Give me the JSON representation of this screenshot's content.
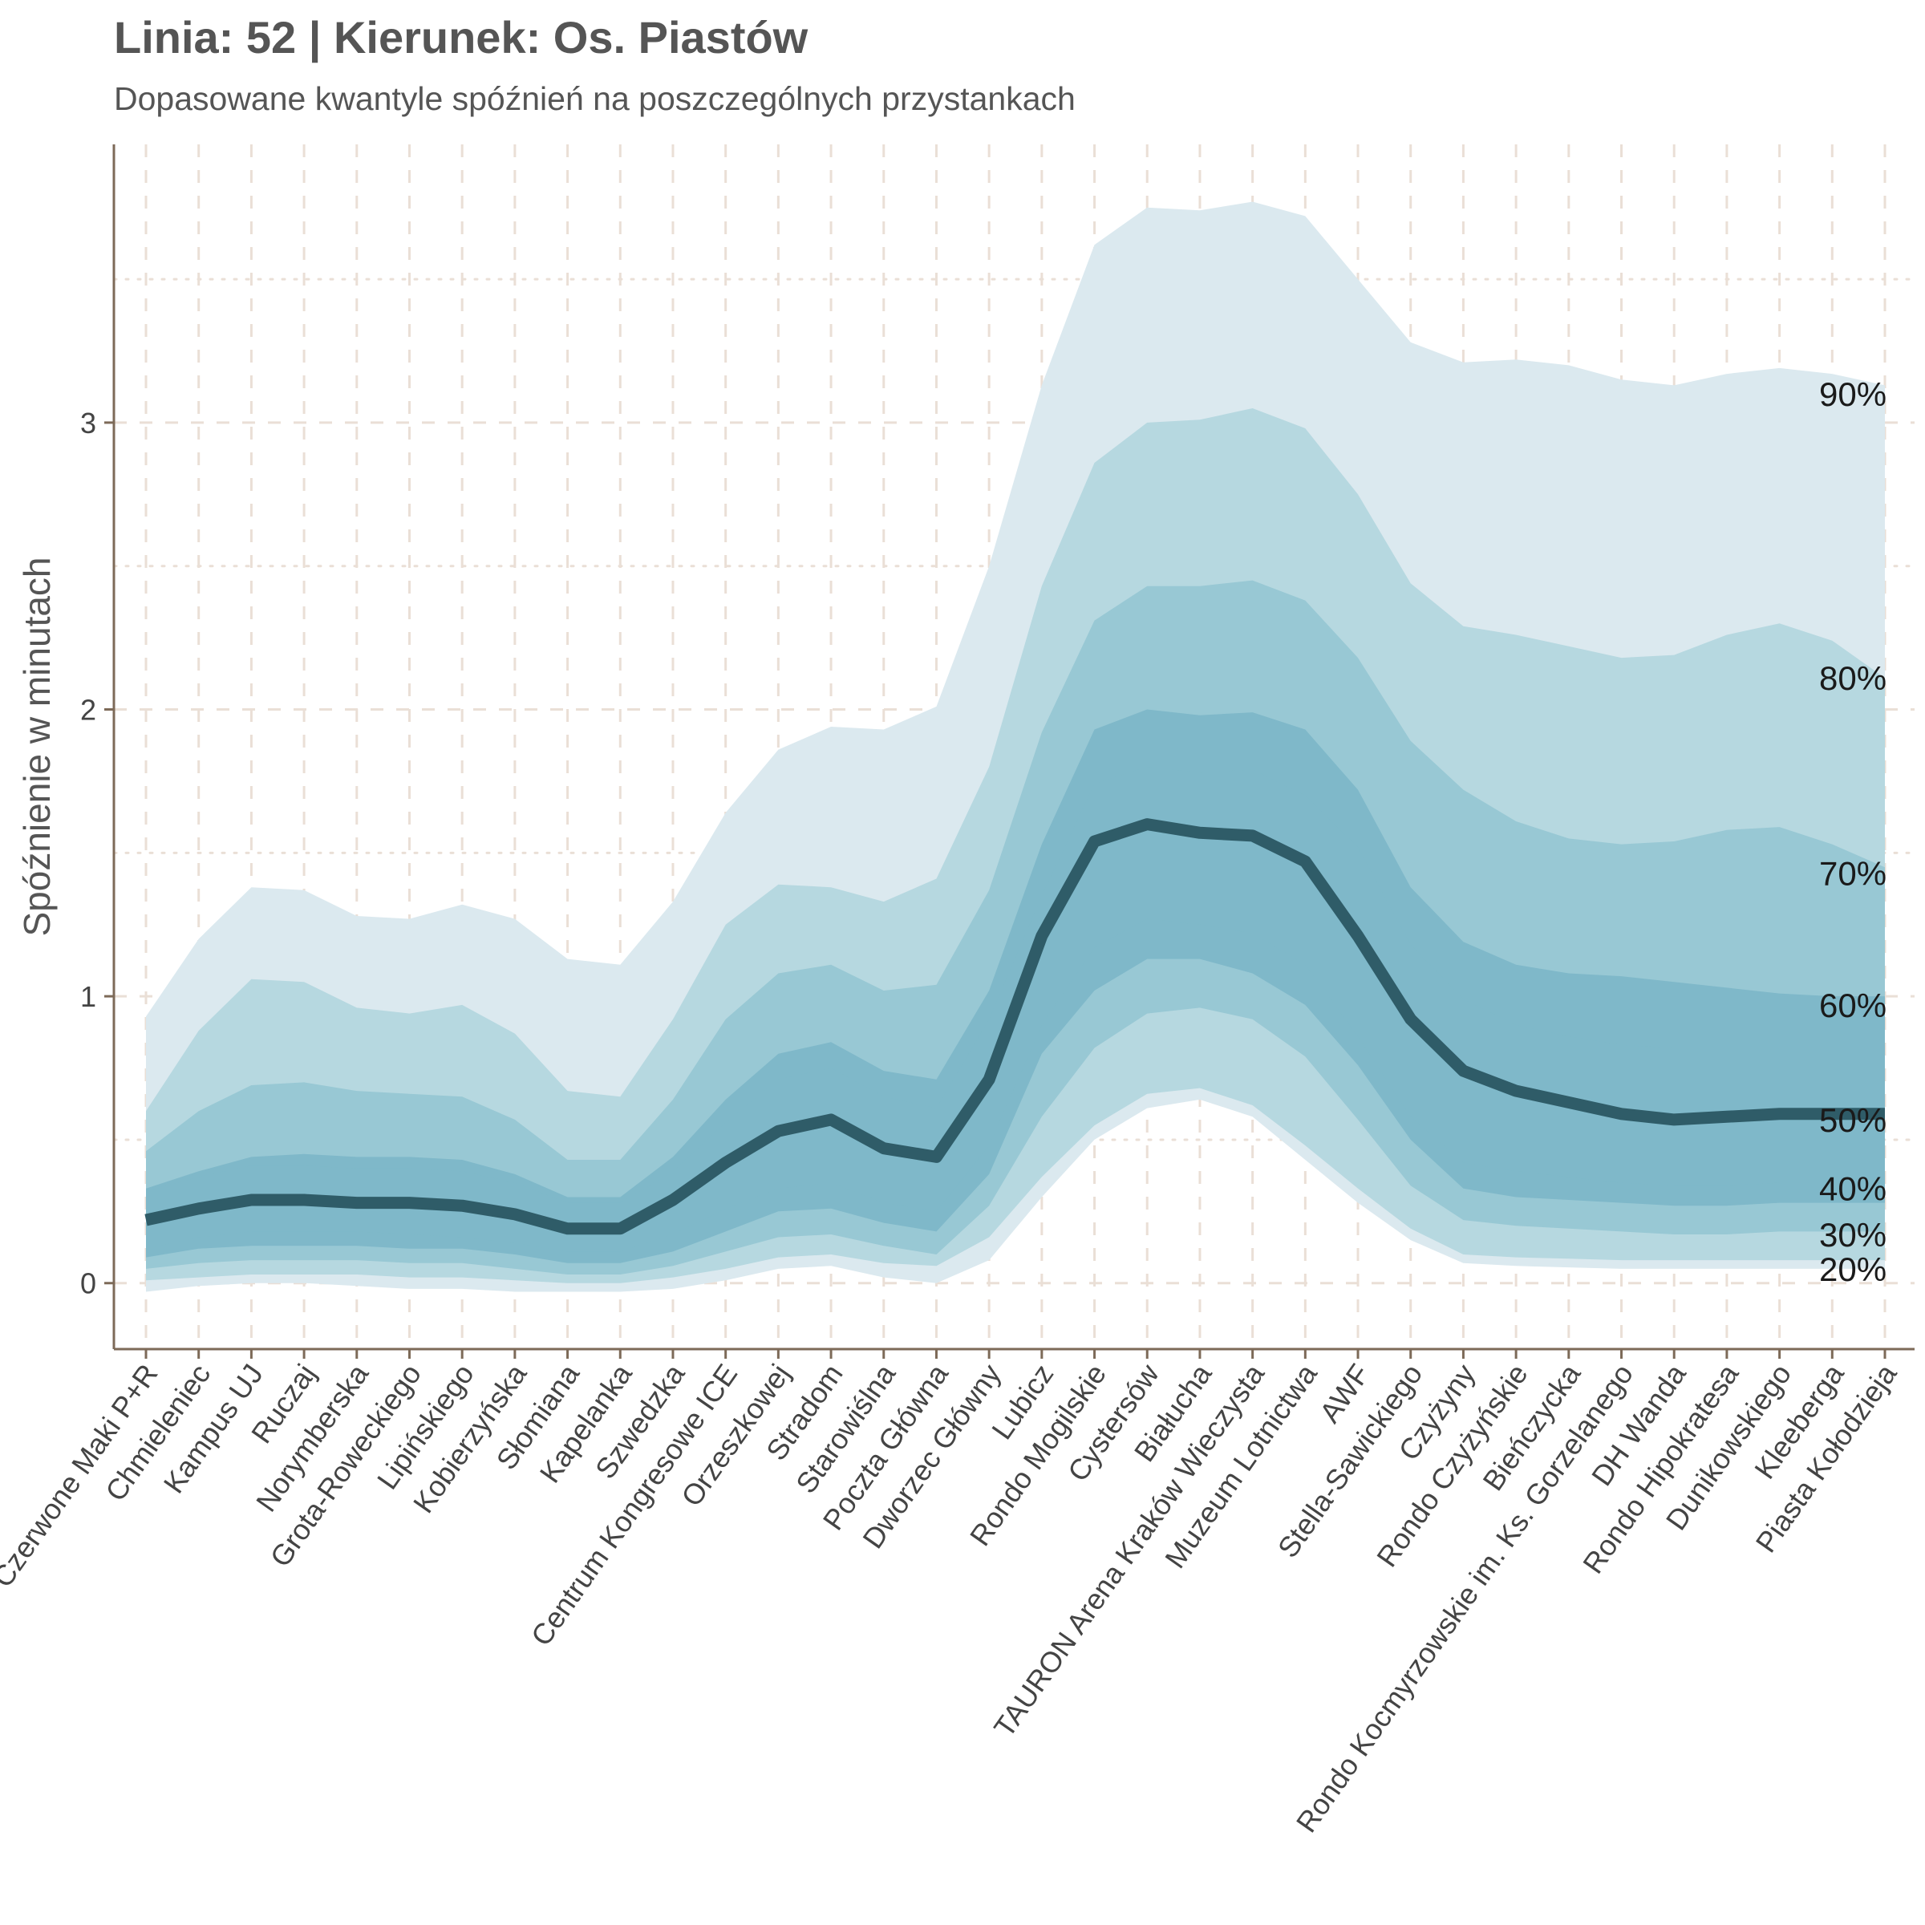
{
  "title": "Linia: 52 | Kierunek: Os. Piastów",
  "subtitle": "Dopasowane kwantyle spóźnień na poszczególnych przystankach",
  "chart_data": {
    "type": "area",
    "title": "Linia: 52 | Kierunek: Os. Piastów",
    "subtitle": "Dopasowane kwantyle spóźnień na poszczególnych przystankach",
    "xlabel": "",
    "ylabel": "Spóźnienie w minutach",
    "ylim": [
      -0.23,
      3.97
    ],
    "yticks": [
      0,
      1,
      2,
      3
    ],
    "grid": true,
    "categories": [
      "Czerwone Maki P+R",
      "Chmieleniec",
      "Kampus UJ",
      "Ruczaj",
      "Norymberska",
      "Grota-Roweckiego",
      "Lipińskiego",
      "Kobierzyńska",
      "Słomiana",
      "Kapelanka",
      "Szwedzka",
      "Centrum Kongresowe ICE",
      "Orzeszkowej",
      "Stradom",
      "Starowiślna",
      "Poczta Główna",
      "Dworzec Główny",
      "Lubicz",
      "Rondo Mogilskie",
      "Cystersów",
      "Białucha",
      "TAURON Arena Kraków Wieczysta",
      "Muzeum Lotnictwa",
      "AWF",
      "Stella-Sawickiego",
      "Czyżyny",
      "Rondo Czyżyńskie",
      "Bieńczycka",
      "Rondo Kocmyrzowskie im. Ks. Gorzelanego",
      "DH Wanda",
      "Rondo Hipokratesa",
      "Dunikowskiego",
      "Kleeberga",
      "Piasta Kołodzieja"
    ],
    "bands": [
      {
        "name": "90%",
        "lower": [
          -0.03,
          -0.01,
          0.0,
          0.0,
          -0.01,
          -0.02,
          -0.02,
          -0.03,
          -0.03,
          -0.03,
          -0.02,
          0.01,
          0.05,
          0.06,
          0.02,
          0.0,
          0.08,
          0.3,
          0.5,
          0.61,
          0.64,
          0.58,
          0.43,
          0.28,
          0.15,
          0.07,
          0.06,
          0.055,
          0.05,
          0.05,
          0.05,
          0.05,
          0.05,
          0.05
        ],
        "upper": [
          0.93,
          1.2,
          1.38,
          1.37,
          1.28,
          1.27,
          1.32,
          1.27,
          1.13,
          1.11,
          1.33,
          1.64,
          1.86,
          1.94,
          1.93,
          2.01,
          2.5,
          3.13,
          3.62,
          3.75,
          3.74,
          3.77,
          3.72,
          3.5,
          3.28,
          3.21,
          3.22,
          3.2,
          3.15,
          3.13,
          3.17,
          3.19,
          3.17,
          3.13
        ]
      },
      {
        "name": "80%",
        "lower": [
          0.01,
          0.02,
          0.03,
          0.03,
          0.03,
          0.02,
          0.02,
          0.01,
          0.0,
          0.0,
          0.02,
          0.05,
          0.09,
          0.1,
          0.07,
          0.06,
          0.16,
          0.37,
          0.55,
          0.66,
          0.68,
          0.62,
          0.48,
          0.33,
          0.19,
          0.1,
          0.09,
          0.085,
          0.08,
          0.08,
          0.08,
          0.08,
          0.08,
          0.08
        ],
        "upper": [
          0.6,
          0.88,
          1.06,
          1.05,
          0.96,
          0.94,
          0.97,
          0.87,
          0.67,
          0.65,
          0.92,
          1.25,
          1.39,
          1.38,
          1.33,
          1.41,
          1.8,
          2.43,
          2.86,
          3.0,
          3.01,
          3.05,
          2.98,
          2.75,
          2.44,
          2.29,
          2.26,
          2.22,
          2.18,
          2.19,
          2.26,
          2.3,
          2.24,
          2.11
        ]
      },
      {
        "name": "70%",
        "lower": [
          0.05,
          0.07,
          0.08,
          0.08,
          0.08,
          0.07,
          0.07,
          0.05,
          0.03,
          0.03,
          0.06,
          0.11,
          0.16,
          0.17,
          0.13,
          0.1,
          0.27,
          0.58,
          0.82,
          0.94,
          0.96,
          0.92,
          0.79,
          0.57,
          0.34,
          0.22,
          0.2,
          0.19,
          0.18,
          0.17,
          0.17,
          0.18,
          0.18,
          0.18
        ],
        "upper": [
          0.46,
          0.6,
          0.69,
          0.7,
          0.67,
          0.66,
          0.65,
          0.57,
          0.43,
          0.43,
          0.64,
          0.92,
          1.08,
          1.11,
          1.02,
          1.04,
          1.37,
          1.92,
          2.31,
          2.43,
          2.43,
          2.45,
          2.38,
          2.18,
          1.89,
          1.72,
          1.61,
          1.55,
          1.53,
          1.54,
          1.58,
          1.59,
          1.53,
          1.45
        ]
      },
      {
        "name": "60%",
        "lower": [
          0.09,
          0.12,
          0.13,
          0.13,
          0.13,
          0.12,
          0.12,
          0.1,
          0.07,
          0.07,
          0.11,
          0.18,
          0.25,
          0.26,
          0.21,
          0.18,
          0.38,
          0.8,
          1.02,
          1.13,
          1.13,
          1.08,
          0.97,
          0.76,
          0.5,
          0.33,
          0.3,
          0.29,
          0.28,
          0.27,
          0.27,
          0.28,
          0.28,
          0.28
        ],
        "upper": [
          0.33,
          0.39,
          0.44,
          0.45,
          0.44,
          0.44,
          0.43,
          0.38,
          0.3,
          0.3,
          0.44,
          0.64,
          0.8,
          0.84,
          0.74,
          0.71,
          1.02,
          1.53,
          1.93,
          2.0,
          1.98,
          1.99,
          1.93,
          1.72,
          1.38,
          1.19,
          1.11,
          1.08,
          1.07,
          1.05,
          1.03,
          1.01,
          1.0,
          1.0
        ]
      },
      {
        "name": "50%",
        "lower": [
          0.12,
          0.16,
          0.18,
          0.18,
          0.18,
          0.17,
          0.16,
          0.14,
          0.11,
          0.11,
          0.17,
          0.26,
          0.33,
          0.35,
          0.28,
          0.25,
          0.48,
          0.9,
          1.17,
          1.27,
          1.25,
          1.22,
          1.11,
          0.86,
          0.58,
          0.42,
          0.39,
          0.37,
          0.35,
          0.34,
          0.34,
          0.35,
          0.35,
          0.35
        ],
        "upper": [
          0.32,
          0.37,
          0.41,
          0.41,
          0.4,
          0.4,
          0.39,
          0.35,
          0.28,
          0.28,
          0.39,
          0.56,
          0.71,
          0.75,
          0.65,
          0.61,
          0.92,
          1.35,
          1.74,
          1.8,
          1.78,
          1.79,
          1.7,
          1.52,
          1.18,
          0.99,
          0.9,
          0.86,
          0.83,
          0.82,
          0.82,
          0.82,
          0.82,
          0.82
        ]
      }
    ],
    "series": [
      {
        "name": "50%",
        "values": [
          0.22,
          0.26,
          0.29,
          0.29,
          0.28,
          0.28,
          0.27,
          0.24,
          0.19,
          0.19,
          0.29,
          0.42,
          0.53,
          0.57,
          0.47,
          0.44,
          0.71,
          1.21,
          1.54,
          1.6,
          1.57,
          1.56,
          1.47,
          1.21,
          0.92,
          0.74,
          0.67,
          0.63,
          0.59,
          0.57,
          0.58,
          0.59,
          0.59,
          0.59
        ]
      }
    ],
    "quantile_labels": [
      {
        "text": "90%",
        "y": 3.1
      },
      {
        "text": "80%",
        "y": 2.11
      },
      {
        "text": "70%",
        "y": 1.43
      },
      {
        "text": "60%",
        "y": 0.97
      },
      {
        "text": "50%",
        "y": 0.57
      },
      {
        "text": "40%",
        "y": 0.33
      },
      {
        "text": "30%",
        "y": 0.17
      },
      {
        "text": "20%",
        "y": 0.05
      }
    ],
    "colors": {
      "band_90": "#dbe9ef",
      "band_80": "#b6d8e0",
      "band_70": "#98c8d4",
      "band_60": "#7fb8c9",
      "band_50": "#7fb8c9",
      "median_line": "#2f5c68",
      "axis": "#7d6a58",
      "grid": "#eadfd6"
    }
  }
}
